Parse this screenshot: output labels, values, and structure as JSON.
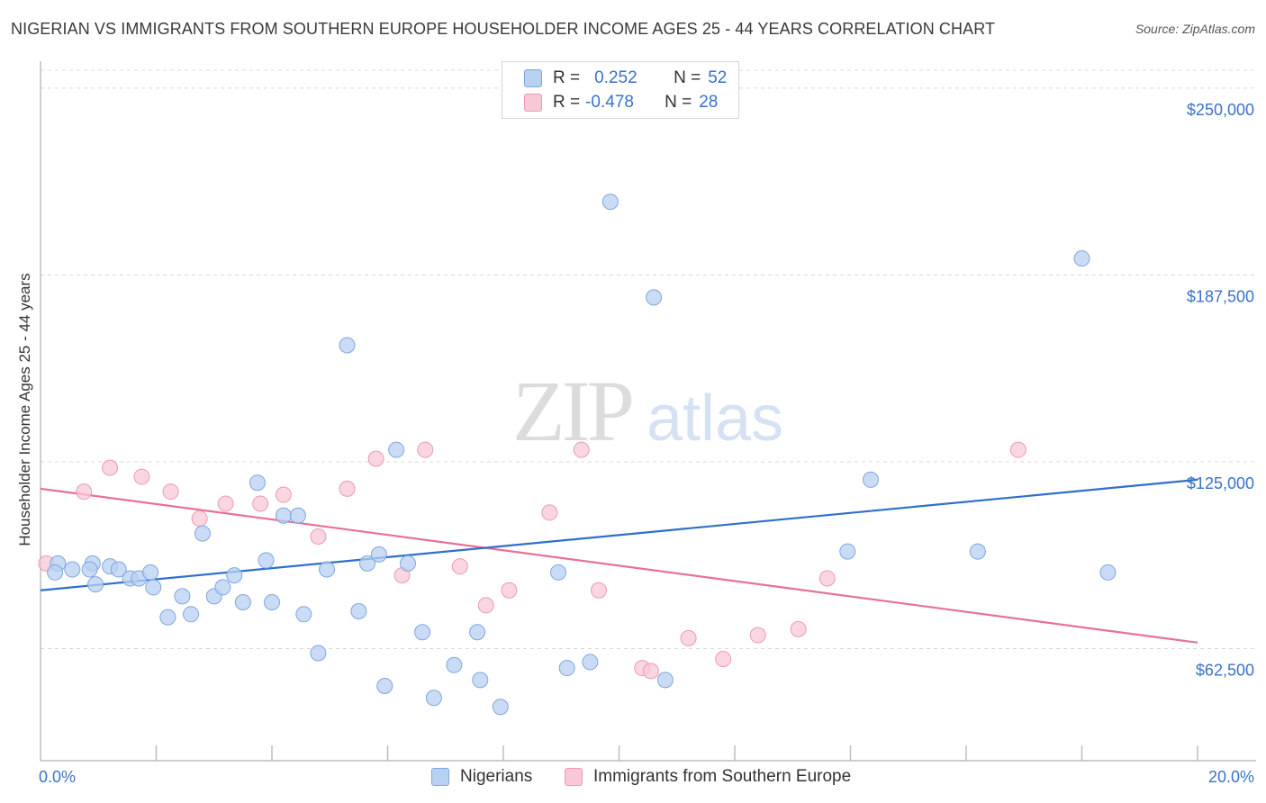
{
  "title": "NIGERIAN VS IMMIGRANTS FROM SOUTHERN EUROPE HOUSEHOLDER INCOME AGES 25 - 44 YEARS CORRELATION CHART",
  "source": "Source: ZipAtlas.com",
  "watermark": {
    "zip": "ZIP",
    "atlas": "atlas"
  },
  "legend": {
    "series1": {
      "r_label": "R =",
      "r_value": "0.252",
      "n_label": "N =",
      "n_value": "52"
    },
    "series2": {
      "r_label": "R =",
      "r_value": "-0.478",
      "n_label": "N =",
      "n_value": "28"
    }
  },
  "bottom_legend": {
    "series1": "Nigerians",
    "series2": "Immigrants from Southern Europe"
  },
  "colors": {
    "blue_fill": "#b8d0f2",
    "blue_stroke": "#7fa6e0",
    "blue_line": "#2e6fcc",
    "pink_fill": "#f8c8d6",
    "pink_stroke": "#ee9ab3",
    "pink_line": "#e8709a",
    "axis_text": "#3a72c9",
    "grid": "#d8d8d8"
  },
  "chart_data": {
    "type": "scatter",
    "title": "NIGERIAN VS IMMIGRANTS FROM SOUTHERN EUROPE HOUSEHOLDER INCOME AGES 25 - 44 YEARS CORRELATION CHART",
    "xlabel": "",
    "ylabel": "Householder Income Ages 25 - 44 years",
    "xlim": [
      0,
      20
    ],
    "ylim": [
      25000,
      256000
    ],
    "x_tick_labels": [
      "0.0%",
      "20.0%"
    ],
    "y_ticks": [
      62500,
      125000,
      187500,
      250000
    ],
    "y_tick_labels": [
      "$62,500",
      "$125,000",
      "$187,500",
      "$250,000"
    ],
    "grid": true,
    "series": [
      {
        "name": "Nigerians",
        "points": [
          [
            0.3,
            91000
          ],
          [
            0.9,
            91000
          ],
          [
            0.55,
            89000
          ],
          [
            0.85,
            89000
          ],
          [
            1.2,
            90000
          ],
          [
            1.35,
            89000
          ],
          [
            0.95,
            84000
          ],
          [
            1.55,
            86000
          ],
          [
            1.7,
            86000
          ],
          [
            1.9,
            88000
          ],
          [
            1.95,
            83000
          ],
          [
            2.2,
            73000
          ],
          [
            2.45,
            80000
          ],
          [
            2.6,
            74000
          ],
          [
            2.8,
            101000
          ],
          [
            3.0,
            80000
          ],
          [
            3.15,
            83000
          ],
          [
            3.35,
            87000
          ],
          [
            3.5,
            78000
          ],
          [
            3.75,
            118000
          ],
          [
            3.9,
            92000
          ],
          [
            4.0,
            78000
          ],
          [
            4.2,
            107000
          ],
          [
            4.45,
            107000
          ],
          [
            4.55,
            74000
          ],
          [
            4.8,
            61000
          ],
          [
            4.95,
            89000
          ],
          [
            5.3,
            164000
          ],
          [
            5.5,
            75000
          ],
          [
            5.65,
            91000
          ],
          [
            5.85,
            94000
          ],
          [
            5.95,
            50000
          ],
          [
            6.15,
            129000
          ],
          [
            6.35,
            91000
          ],
          [
            6.6,
            68000
          ],
          [
            6.8,
            46000
          ],
          [
            7.15,
            57000
          ],
          [
            7.55,
            68000
          ],
          [
            7.6,
            52000
          ],
          [
            7.95,
            43000
          ],
          [
            8.95,
            88000
          ],
          [
            9.1,
            56000
          ],
          [
            9.5,
            58000
          ],
          [
            9.85,
            212000
          ],
          [
            10.6,
            180000
          ],
          [
            10.8,
            52000
          ],
          [
            13.95,
            95000
          ],
          [
            14.35,
            119000
          ],
          [
            16.2,
            95000
          ],
          [
            18.0,
            193000
          ],
          [
            18.45,
            88000
          ],
          [
            0.25,
            88000
          ]
        ],
        "trend": {
          "x": [
            0,
            20
          ],
          "y": [
            82000,
            119000
          ]
        }
      },
      {
        "name": "Immigrants from Southern Europe",
        "points": [
          [
            0.1,
            91000
          ],
          [
            0.75,
            115000
          ],
          [
            1.2,
            123000
          ],
          [
            1.75,
            120000
          ],
          [
            2.25,
            115000
          ],
          [
            2.75,
            106000
          ],
          [
            3.2,
            111000
          ],
          [
            3.8,
            111000
          ],
          [
            4.2,
            114000
          ],
          [
            4.8,
            100000
          ],
          [
            5.3,
            116000
          ],
          [
            5.8,
            126000
          ],
          [
            6.25,
            87000
          ],
          [
            6.65,
            129000
          ],
          [
            7.25,
            90000
          ],
          [
            7.7,
            77000
          ],
          [
            8.1,
            82000
          ],
          [
            8.8,
            108000
          ],
          [
            9.35,
            129000
          ],
          [
            9.65,
            82000
          ],
          [
            10.4,
            56000
          ],
          [
            10.55,
            55000
          ],
          [
            11.2,
            66000
          ],
          [
            11.8,
            59000
          ],
          [
            12.4,
            67000
          ],
          [
            13.1,
            69000
          ],
          [
            13.6,
            86000
          ],
          [
            16.9,
            129000
          ]
        ],
        "trend": {
          "x": [
            0,
            20
          ],
          "y": [
            116000,
            64500
          ]
        }
      }
    ]
  }
}
